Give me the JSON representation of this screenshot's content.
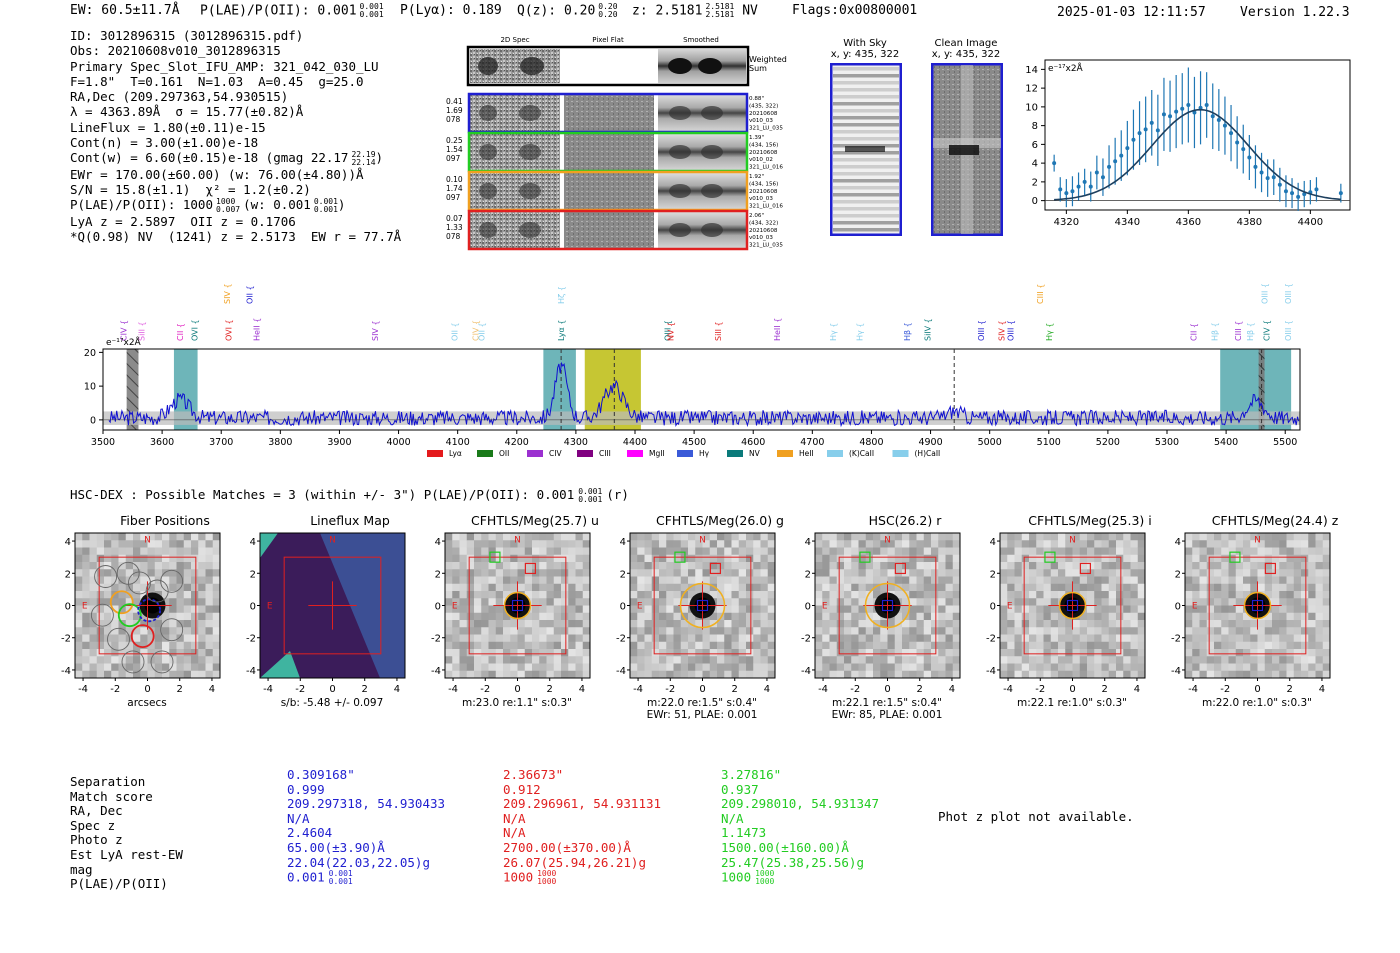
{
  "header": {
    "ew": "EW: 60.5±11.7Å",
    "plae": "P(LAE)/P(OII): 0.001",
    "plae_sup": "0.001",
    "plae_sub": "0.001",
    "plya": "P(Lyα): 0.189",
    "qz": "Q(z): 0.20",
    "qz_sup": "0.20",
    "qz_sub": "0.20",
    "z": "z: 2.5181",
    "z_sup": "2.5181",
    "z_sub": "2.5181",
    "z_line": "NV",
    "flags": "Flags:0x00800001",
    "timestamp": "2025-01-03 12:11:57",
    "version": "Version 1.22.3"
  },
  "info": [
    "ID: 3012896315 (3012896315.pdf)",
    "Obs: 20210608v010_3012896315",
    "Primary Spec_Slot_IFU_AMP: 321_042_030_LU",
    "F=1.8\"  T=0.161  N=1.03  A=0.45  g=25.0",
    "RA,Dec (209.297363,54.930515)",
    "λ = 4363.89Å  σ = 15.77(±0.82)Å",
    "LineFlux = 1.80(±0.11)e-15",
    "Cont(n) = 3.00(±1.00)e-18",
    "Cont(w) = 6.60(±0.15)e-18 (gmag 22.17",
    "EWr = 170.00(±60.00) (w: 76.00(±4.80))Å",
    "S/N = 15.8(±1.1)  χ² = 1.2(±0.2)",
    "P(LAE)/P(OII): 1000",
    "LyA z = 2.5897  OII z = 0.1706",
    "*Q(0.98) NV  (1241) z = 2.5173  EW r = 77.7Å"
  ],
  "info_extra": {
    "gmag_sup": "22.19",
    "gmag_sub": "22.14",
    "plae_sup": "1000",
    "plae_sub": "0.007",
    "plae_w": "(w: 0.001",
    "plae_w_sup": "0.001",
    "plae_w_sub": "0.001"
  },
  "spec2d": {
    "col_titles": [
      "2D Spec",
      "Pixel Flat",
      "Smoothed"
    ],
    "weighted_label": "Weighted Sum",
    "rows": [
      {
        "left": [
          "0.41",
          "1.69",
          "078"
        ],
        "right": [
          "0.88\"",
          "(435, 322)",
          "20210608",
          "v010_03",
          "321_LU_035"
        ],
        "color": "#1f1fd0"
      },
      {
        "left": [
          "0.25",
          "1.54",
          "097"
        ],
        "right": [
          "1.39\"",
          "(434, 156)",
          "20210608",
          "v010_02",
          "321_LU_016"
        ],
        "color": "#22cc22"
      },
      {
        "left": [
          "0.10",
          "1.74",
          "097"
        ],
        "right": [
          "1.92\"",
          "(434, 156)",
          "20210608",
          "v010_03",
          "321_LU_016"
        ],
        "color": "#f0a020"
      },
      {
        "left": [
          "0.07",
          "1.33",
          "078"
        ],
        "right": [
          "2.06\"",
          "(434, 322)",
          "20210608",
          "v010_03",
          "321_LU_035"
        ],
        "color": "#e02020"
      }
    ]
  },
  "sky_panels": {
    "with_sky": {
      "title": "With Sky",
      "coords": "x, y: 435, 322"
    },
    "clean": {
      "title": "Clean Image",
      "coords": "x, y: 435, 322"
    }
  },
  "zoom_chart": {
    "type": "line",
    "ylabel": "e⁻¹⁷x2Å",
    "xlim": [
      4313,
      4413
    ],
    "ylim": [
      -1,
      15
    ],
    "xticks": [
      4320,
      4340,
      4360,
      4380,
      4400
    ],
    "yticks": [
      0,
      2,
      4,
      6,
      8,
      10,
      12,
      14
    ],
    "fit": {
      "center": 4363.89,
      "sigma": 15.77,
      "amp": 9.7
    },
    "points": [
      [
        4316,
        4.0,
        0.9
      ],
      [
        4318,
        1.2,
        1.3
      ],
      [
        4320,
        0.8,
        1.5
      ],
      [
        4322,
        1.0,
        1.6
      ],
      [
        4324,
        1.5,
        1.5
      ],
      [
        4326,
        2.0,
        1.4
      ],
      [
        4328,
        1.5,
        1.6
      ],
      [
        4330,
        3.0,
        1.8
      ],
      [
        4332,
        2.5,
        2.0
      ],
      [
        4334,
        3.6,
        2.3
      ],
      [
        4336,
        4.2,
        2.5
      ],
      [
        4338,
        4.8,
        2.7
      ],
      [
        4340,
        5.6,
        2.9
      ],
      [
        4342,
        6.5,
        3.2
      ],
      [
        4344,
        7.2,
        3.4
      ],
      [
        4346,
        7.6,
        3.5
      ],
      [
        4348,
        8.3,
        3.5
      ],
      [
        4350,
        7.5,
        3.8
      ],
      [
        4352,
        9.2,
        3.9
      ],
      [
        4354,
        9.0,
        3.8
      ],
      [
        4356,
        9.5,
        3.9
      ],
      [
        4358,
        9.8,
        3.8
      ],
      [
        4360,
        10.2,
        4.0
      ],
      [
        4362,
        9.4,
        3.8
      ],
      [
        4364,
        9.9,
        3.9
      ],
      [
        4366,
        10.2,
        3.5
      ],
      [
        4368,
        9.0,
        3.5
      ],
      [
        4370,
        8.6,
        3.3
      ],
      [
        4372,
        8.0,
        3.1
      ],
      [
        4374,
        7.2,
        3.0
      ],
      [
        4376,
        6.2,
        2.8
      ],
      [
        4378,
        5.5,
        2.6
      ],
      [
        4380,
        4.6,
        2.4
      ],
      [
        4382,
        3.6,
        2.3
      ],
      [
        4384,
        3.0,
        2.1
      ],
      [
        4386,
        2.4,
        2.0
      ],
      [
        4388,
        2.5,
        1.9
      ],
      [
        4390,
        1.7,
        1.8
      ],
      [
        4392,
        1.0,
        1.7
      ],
      [
        4394,
        0.8,
        1.6
      ],
      [
        4396,
        0.4,
        1.5
      ],
      [
        4398,
        0.7,
        1.4
      ],
      [
        4400,
        0.9,
        1.3
      ],
      [
        4402,
        1.2,
        1.3
      ],
      [
        4410,
        0.8,
        1.0
      ]
    ]
  },
  "spectrum": {
    "type": "line",
    "ylabel": "e⁻¹⁷x2Å",
    "xlim": [
      3500,
      5525
    ],
    "ylim": [
      -3,
      21
    ],
    "xticks": [
      3500,
      3600,
      3700,
      3800,
      3900,
      4000,
      4100,
      4200,
      4300,
      4400,
      4500,
      4600,
      4700,
      4800,
      4900,
      5000,
      5100,
      5200,
      5300,
      5400,
      5500
    ],
    "yticks": [
      0,
      10,
      20
    ],
    "bands": [
      {
        "x0": 3540,
        "x1": 3560,
        "type": "hatch"
      },
      {
        "x0": 3620,
        "x1": 3660,
        "type": "teal"
      },
      {
        "x0": 4245,
        "x1": 4300,
        "type": "teal"
      },
      {
        "x0": 4315,
        "x1": 4410,
        "type": "olive"
      },
      {
        "x0": 5390,
        "x1": 5510,
        "type": "teal"
      },
      {
        "x0": 5455,
        "x1": 5465,
        "type": "hatch"
      }
    ],
    "lines": [
      {
        "x": 3535,
        "label": "CIV",
        "color": "#9b30d0",
        "row": 1
      },
      {
        "x": 3565,
        "label": "SiII",
        "color": "#e060e0",
        "row": 1
      },
      {
        "x": 3630,
        "label": "CII",
        "color": "#e020c0",
        "row": 1
      },
      {
        "x": 3655,
        "label": "OVI",
        "color": "#0a7a7a",
        "row": 1
      },
      {
        "x": 3710,
        "label": "SIV",
        "color": "#f0a020",
        "row": 0
      },
      {
        "x": 3712,
        "label": "OVI",
        "color": "#e02020",
        "row": 1
      },
      {
        "x": 3748,
        "label": "OII",
        "color": "#1f1fd0",
        "row": 0
      },
      {
        "x": 3760,
        "label": "HeII",
        "color": "#9b30d0",
        "row": 1
      },
      {
        "x": 3960,
        "label": "SIV",
        "color": "#9b30d0",
        "row": 1
      },
      {
        "x": 4095,
        "label": "OII",
        "color": "#87ceeb",
        "row": 1
      },
      {
        "x": 4130,
        "label": "CIV",
        "color": "#f0c070",
        "row": 1
      },
      {
        "x": 4140,
        "label": "OII",
        "color": "#87ceeb",
        "row": 1
      },
      {
        "x": 4275,
        "label": "Hζ",
        "color": "#87ceeb",
        "row": 0
      },
      {
        "x": 4275,
        "label": "Lyα",
        "color": "#0a7a7a",
        "row": 1
      },
      {
        "x": 4455,
        "label": "OIII",
        "color": "#0a7a7a",
        "row": 1
      },
      {
        "x": 4460,
        "label": "NV",
        "color": "#e02020",
        "row": 1
      },
      {
        "x": 4540,
        "label": "SiII",
        "color": "#e02020",
        "row": 1
      },
      {
        "x": 4640,
        "label": "HeII",
        "color": "#9b30d0",
        "row": 1
      },
      {
        "x": 4735,
        "label": "Hγ",
        "color": "#87ceeb",
        "row": 1
      },
      {
        "x": 4780,
        "label": "Hγ",
        "color": "#87ceeb",
        "row": 1
      },
      {
        "x": 4860,
        "label": "Hβ",
        "color": "#3a5ad8",
        "row": 1
      },
      {
        "x": 4895,
        "label": "SiIV",
        "color": "#0a7a7a",
        "row": 1
      },
      {
        "x": 4985,
        "label": "OIII",
        "color": "#1f1fd0",
        "row": 1
      },
      {
        "x": 5020,
        "label": "SIV",
        "color": "#e02020",
        "row": 1
      },
      {
        "x": 5035,
        "label": "OIII",
        "color": "#1f1fd0",
        "row": 1
      },
      {
        "x": 5085,
        "label": "CIII",
        "color": "#f0a020",
        "row": 0
      },
      {
        "x": 5100,
        "label": "Hγ",
        "color": "#22aa22",
        "row": 1
      },
      {
        "x": 5345,
        "label": "CII",
        "color": "#9b30d0",
        "row": 1
      },
      {
        "x": 5380,
        "label": "Hβ",
        "color": "#87ceeb",
        "row": 1
      },
      {
        "x": 5420,
        "label": "CIII",
        "color": "#9b30d0",
        "row": 1
      },
      {
        "x": 5440,
        "label": "Hβ",
        "color": "#87ceeb",
        "row": 1
      },
      {
        "x": 5465,
        "label": "OIII",
        "color": "#87ceeb",
        "row": 0
      },
      {
        "x": 5468,
        "label": "CIV",
        "color": "#0a7a7a",
        "row": 1
      },
      {
        "x": 5505,
        "label": "OIII",
        "color": "#87ceeb",
        "row": 0
      },
      {
        "x": 5505,
        "label": "OIII",
        "color": "#87ceeb",
        "row": 1
      }
    ],
    "legend": [
      {
        "label": "Lyα",
        "color": "#e41a1c"
      },
      {
        "label": "OII",
        "color": "#1a7a1a"
      },
      {
        "label": "CIV",
        "color": "#9b30d0"
      },
      {
        "label": "CIII",
        "color": "#800080"
      },
      {
        "label": "MgII",
        "color": "#ff00ff"
      },
      {
        "label": "Hγ",
        "color": "#3a5ad8"
      },
      {
        "label": "NV",
        "color": "#0a7a7a"
      },
      {
        "label": "HeII",
        "color": "#f0a020"
      },
      {
        "label": "(K)CaII",
        "color": "#87ceeb"
      },
      {
        "label": "(H)CaII",
        "color": "#87ceeb"
      }
    ]
  },
  "hsc_header": {
    "text": "HSC-DEX : Possible Matches = 3 (within +/- 3\")  P(LAE)/P(OII): 0.001",
    "sup": "0.001",
    "sub": "0.001",
    "suffix": "(r)"
  },
  "cutouts": [
    {
      "title": "Fiber Positions",
      "sub1": "arcsecs",
      "sub2": "",
      "kind": "fiber"
    },
    {
      "title": "Lineflux Map",
      "sub1": "s/b: -5.48 +/- 0.097",
      "sub2": "",
      "kind": "flux"
    },
    {
      "title": "CFHTLS/Meg(25.7) u",
      "sub1": "m:23.0  re:1.1\"  s:0.3\"",
      "sub2": "",
      "kind": "band"
    },
    {
      "title": "CFHTLS/Meg(26.0) g",
      "sub1": "m:22.0  re:1.5\"  s:0.4\"",
      "sub2": "EWr: 51, PLAE: 0.001",
      "kind": "band"
    },
    {
      "title": "HSC(26.2) r",
      "sub1": "m:22.1  re:1.5\"  s:0.4\"",
      "sub2": "EWr: 85, PLAE: 0.001",
      "kind": "band"
    },
    {
      "title": "CFHTLS/Meg(25.3) i",
      "sub1": "m:22.1  re:1.0\"  s:0.3\"",
      "sub2": "",
      "kind": "band"
    },
    {
      "title": "CFHTLS/Meg(24.4) z",
      "sub1": "m:22.0  re:1.0\"  s:0.3\"",
      "sub2": "",
      "kind": "band"
    }
  ],
  "cutout_axes": {
    "ticks": [
      "4",
      "2",
      "0",
      "-2",
      "-4"
    ],
    "xticks": [
      "-4",
      "-2",
      "0",
      "2",
      "4"
    ],
    "compass": {
      "n": "N",
      "e": "E"
    }
  },
  "matches": {
    "labels": [
      "Separation",
      "Match score",
      "RA, Dec",
      "Spec z",
      "Photo z",
      "Est LyA rest-EW",
      "mag",
      "P(LAE)/P(OII)"
    ],
    "columns": [
      {
        "color": "#1f1fd0",
        "values": [
          "0.309168\"",
          "0.999",
          "209.297318, 54.930433",
          "N/A",
          "2.4604",
          "65.00(±3.90)Å",
          "22.04(22.03,22.05)g",
          "0.001"
        ],
        "plae_sup": "0.001",
        "plae_sub": "0.001"
      },
      {
        "color": "#e02020",
        "values": [
          "2.36673\"",
          "0.912",
          "209.296961, 54.931131",
          "N/A",
          "N/A",
          "2700.00(±370.00)Å",
          "26.07(25.94,26.21)g",
          "1000"
        ],
        "plae_sup": "1000",
        "plae_sub": "1000"
      },
      {
        "color": "#22cc22",
        "values": [
          "3.27816\"",
          "0.937",
          "209.298010, 54.931347",
          "N/A",
          "1.1473",
          "1500.00(±160.00)Å",
          "25.47(25.38,25.56)g",
          "1000"
        ],
        "plae_sup": "1000",
        "plae_sub": "1000"
      }
    ],
    "photz_note": "Phot z plot not available."
  }
}
